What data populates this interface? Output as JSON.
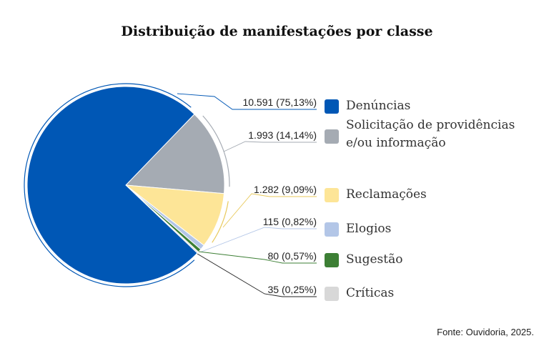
{
  "chart_data": {
    "type": "pie",
    "title": "Distribuição de manifestações por classe",
    "slices": [
      {
        "name": "Denúncias",
        "value": 10591,
        "label": "10.591 (75,13%)",
        "percent": 75.13,
        "color": "#0057b5"
      },
      {
        "name": "Solicitação de providências e/ou informação",
        "name_lines": [
          "Solicitação de providências",
          "e/ou informação"
        ],
        "value": 1993,
        "label": "1.993 (14,14%)",
        "percent": 14.14,
        "color": "#a5abb3"
      },
      {
        "name": "Reclamações",
        "value": 1282,
        "label": "1.282 (9,09%)",
        "percent": 9.09,
        "color": "#fde597"
      },
      {
        "name": "Elogios",
        "value": 115,
        "label": "115 (0,82%)",
        "percent": 0.82,
        "color": "#b3c6e7"
      },
      {
        "name": "Sugestão",
        "value": 80,
        "label": "80 (0,57%)",
        "percent": 0.57,
        "color": "#3d7f35"
      },
      {
        "name": "Críticas",
        "value": 35,
        "label": "35 (0,25%)",
        "percent": 0.25,
        "color": "#d8d8d8"
      }
    ],
    "legend": "right",
    "source": "Fonte: Ouvidoria, 2025."
  }
}
